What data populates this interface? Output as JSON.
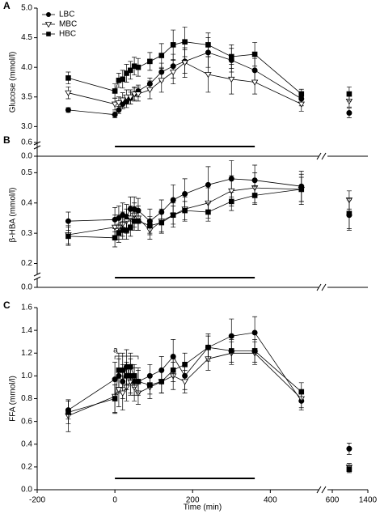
{
  "chart_data": [
    {
      "type": "line",
      "panel": "A",
      "ylabel": "Glucose (mmol/l)",
      "x": [
        -120,
        0,
        10,
        20,
        30,
        40,
        50,
        60,
        90,
        120,
        150,
        180,
        240,
        300,
        360,
        480,
        980
      ],
      "xlim": [
        -200,
        1400
      ],
      "xbreak": [
        520,
        600
      ],
      "ylim": [
        0,
        5
      ],
      "ybreak": [
        0,
        2.8
      ],
      "yticks": [
        {
          "value": 0,
          "label": "0.0"
        },
        {
          "value": 3,
          "label": "3.0"
        },
        {
          "value": 3.5,
          "label": "3.5"
        },
        {
          "value": 4,
          "label": "4.0"
        },
        {
          "value": 4.5,
          "label": "4.5"
        },
        {
          "value": 5,
          "label": "5.0"
        }
      ],
      "series": [
        {
          "name": "LBC",
          "marker": "circle",
          "color": "#000000",
          "values": [
            3.28,
            3.2,
            3.28,
            3.38,
            3.42,
            3.48,
            3.55,
            3.6,
            3.72,
            3.92,
            4.02,
            4.1,
            4.25,
            4.12,
            3.95,
            3.47,
            3.23
          ],
          "errors": [
            0.04,
            0.05,
            0.06,
            0.08,
            0.1,
            0.1,
            0.1,
            0.1,
            0.1,
            0.15,
            0.2,
            0.2,
            0.25,
            0.2,
            0.2,
            0.12,
            0.08
          ]
        },
        {
          "name": "MBC",
          "marker": "triangle",
          "color": "#000000",
          "values": [
            3.57,
            3.38,
            3.4,
            3.45,
            3.5,
            3.5,
            3.55,
            3.55,
            3.62,
            3.78,
            3.92,
            4.08,
            3.88,
            3.8,
            3.75,
            3.38,
            3.43
          ],
          "errors": [
            0.1,
            0.1,
            0.1,
            0.12,
            0.12,
            0.12,
            0.12,
            0.12,
            0.15,
            0.2,
            0.2,
            0.25,
            0.3,
            0.25,
            0.2,
            0.12,
            0.1
          ]
        },
        {
          "name": "HBC",
          "marker": "square",
          "color": "#000000",
          "values": [
            3.82,
            3.6,
            3.78,
            3.8,
            3.9,
            3.95,
            4.02,
            4.0,
            4.1,
            4.2,
            4.38,
            4.43,
            4.38,
            4.18,
            4.22,
            3.55,
            3.55
          ],
          "errors": [
            0.1,
            0.12,
            0.12,
            0.15,
            0.15,
            0.15,
            0.15,
            0.15,
            0.15,
            0.2,
            0.25,
            0.25,
            0.2,
            0.2,
            0.2,
            0.08,
            0.12
          ]
        }
      ]
    },
    {
      "type": "line",
      "panel": "B",
      "ylabel": "β-HBA (mmol/l)",
      "x": [
        -120,
        0,
        10,
        20,
        30,
        40,
        50,
        60,
        90,
        120,
        150,
        180,
        240,
        300,
        360,
        480,
        980
      ],
      "xlim": [
        -200,
        1400
      ],
      "xbreak": [
        520,
        600
      ],
      "ylim": [
        0,
        0.6
      ],
      "ybreak": [
        0,
        0.18
      ],
      "yticks": [
        {
          "value": 0,
          "label": "0.0"
        },
        0.2,
        0.3,
        0.4,
        0.5,
        0.6
      ],
      "series": [
        {
          "name": "LBC",
          "marker": "circle",
          "color": "#000000",
          "values": [
            0.34,
            0.345,
            0.35,
            0.36,
            0.355,
            0.38,
            0.38,
            0.375,
            0.34,
            0.37,
            0.41,
            0.43,
            0.46,
            0.48,
            0.475,
            0.455,
            0.36
          ],
          "errors": [
            0.03,
            0.04,
            0.04,
            0.04,
            0.04,
            0.04,
            0.04,
            0.04,
            0.04,
            0.04,
            0.05,
            0.05,
            0.06,
            0.06,
            0.05,
            0.05,
            0.05
          ]
        },
        {
          "name": "MBC",
          "marker": "triangle",
          "color": "#000000",
          "values": [
            0.295,
            0.32,
            0.32,
            0.33,
            0.34,
            0.35,
            0.36,
            0.35,
            0.31,
            0.34,
            0.36,
            0.38,
            0.4,
            0.44,
            0.45,
            0.445,
            0.41
          ],
          "errors": [
            0.03,
            0.04,
            0.04,
            0.04,
            0.04,
            0.04,
            0.04,
            0.04,
            0.03,
            0.04,
            0.04,
            0.04,
            0.05,
            0.05,
            0.05,
            0.05,
            0.03
          ]
        },
        {
          "name": "HBC",
          "marker": "square",
          "color": "#000000",
          "values": [
            0.29,
            0.285,
            0.3,
            0.31,
            0.31,
            0.32,
            0.34,
            0.34,
            0.325,
            0.335,
            0.36,
            0.375,
            0.37,
            0.405,
            0.425,
            0.445,
            0.365
          ],
          "errors": [
            0.03,
            0.03,
            0.03,
            0.03,
            0.03,
            0.03,
            0.03,
            0.03,
            0.03,
            0.03,
            0.03,
            0.03,
            0.03,
            0.03,
            0.03,
            0.04,
            0.05
          ]
        }
      ]
    },
    {
      "type": "line",
      "panel": "C",
      "ylabel": "FFA (mmol/l)",
      "xlabel": "Time (min)",
      "annotation": "a",
      "x": [
        -120,
        0,
        10,
        20,
        30,
        40,
        50,
        60,
        90,
        120,
        150,
        180,
        240,
        300,
        360,
        480,
        980
      ],
      "xlim": [
        -200,
        1400
      ],
      "xbreak": [
        520,
        600
      ],
      "xticks": [
        -200,
        0,
        200,
        400,
        600,
        1400
      ],
      "ylim": [
        0,
        1.6
      ],
      "yticks": [
        {
          "value": 0,
          "label": "0.0"
        },
        {
          "value": 0.2,
          "label": "0.2"
        },
        {
          "value": 0.4,
          "label": "0.4"
        },
        {
          "value": 0.6,
          "label": "0.6"
        },
        {
          "value": 0.8,
          "label": "0.8"
        },
        {
          "value": 1,
          "label": "1.0"
        },
        {
          "value": 1.2,
          "label": "1.2"
        },
        {
          "value": 1.4,
          "label": "1.4"
        },
        {
          "value": 1.6,
          "label": "1.6"
        }
      ],
      "series": [
        {
          "name": "LBC",
          "marker": "circle",
          "color": "#000000",
          "values": [
            0.7,
            0.97,
            1.0,
            0.95,
            1.08,
            1.0,
            0.95,
            0.95,
            1.0,
            1.05,
            1.17,
            1.0,
            1.25,
            1.35,
            1.38,
            0.78,
            0.36
          ],
          "errors": [
            0.08,
            0.15,
            0.15,
            0.15,
            0.15,
            0.15,
            0.12,
            0.12,
            0.1,
            0.12,
            0.15,
            0.12,
            0.12,
            0.15,
            0.14,
            0.08,
            0.05
          ]
        },
        {
          "name": "MBC",
          "marker": "triangle",
          "color": "#000000",
          "values": [
            0.65,
            0.82,
            0.88,
            0.85,
            0.9,
            0.95,
            0.9,
            0.85,
            0.9,
            0.95,
            1.0,
            0.95,
            1.15,
            1.2,
            1.2,
            0.8,
            0.2
          ],
          "errors": [
            0.14,
            0.15,
            0.15,
            0.15,
            0.12,
            0.12,
            0.12,
            0.1,
            0.1,
            0.1,
            0.12,
            0.1,
            0.1,
            0.1,
            0.1,
            0.08,
            0.03
          ]
        },
        {
          "name": "HBC",
          "marker": "square",
          "color": "#000000",
          "values": [
            0.68,
            0.8,
            1.05,
            1.05,
            1.0,
            1.08,
            1.0,
            0.95,
            0.92,
            0.95,
            1.05,
            1.1,
            1.25,
            1.22,
            1.22,
            0.86,
            0.18
          ],
          "errors": [
            0.1,
            0.12,
            0.15,
            0.15,
            0.12,
            0.12,
            0.1,
            0.1,
            0.08,
            0.1,
            0.1,
            0.1,
            0.1,
            0.1,
            0.1,
            0.08,
            0.03
          ]
        }
      ]
    }
  ]
}
